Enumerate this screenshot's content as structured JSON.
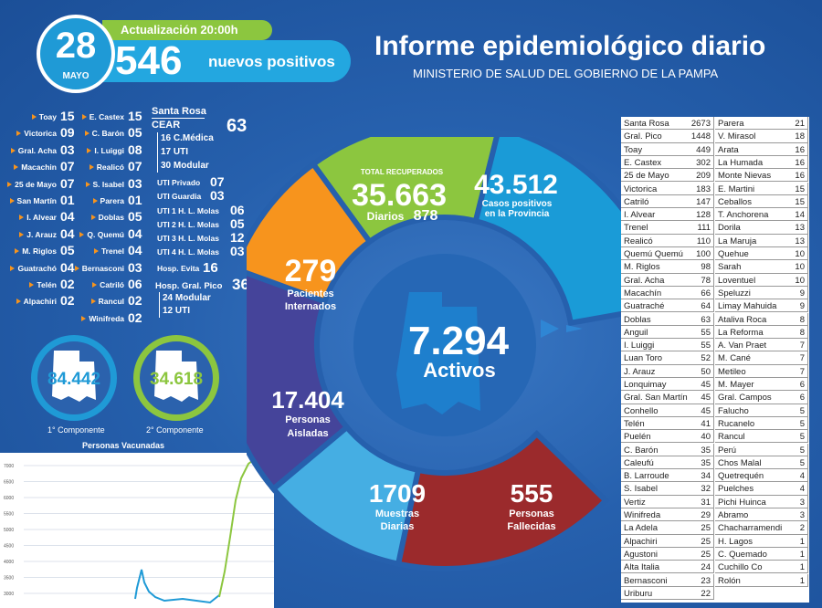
{
  "header": {
    "day": "28",
    "month": "MAYO",
    "update": "Actualización 20:00h",
    "positives": "546",
    "positives_label": "nuevos positivos",
    "title": "Informe epidemiológico diario",
    "subtitle": "MINISTERIO DE SALUD DEL GOBIERNO DE LA PAMPA"
  },
  "localities_left": [
    {
      "name": "Toay",
      "value": "15"
    },
    {
      "name": "Victorica",
      "value": "09"
    },
    {
      "name": "Gral. Acha",
      "value": "03"
    },
    {
      "name": "Macachin",
      "value": "07"
    },
    {
      "name": "25 de Mayo",
      "value": "07"
    },
    {
      "name": "San Martín",
      "value": "01"
    },
    {
      "name": "I. Alvear",
      "value": "04"
    },
    {
      "name": "J. Arauz",
      "value": "04"
    },
    {
      "name": "M. Riglos",
      "value": "05"
    },
    {
      "name": "Guatrachó",
      "value": "04"
    },
    {
      "name": "Telén",
      "value": "02"
    },
    {
      "name": "Alpachiri",
      "value": "02"
    }
  ],
  "localities_mid": [
    {
      "name": "E. Castex",
      "value": "15"
    },
    {
      "name": "C. Barón",
      "value": "05"
    },
    {
      "name": "I. Luiggi",
      "value": "08"
    },
    {
      "name": "Realicó",
      "value": "07"
    },
    {
      "name": "S. Isabel",
      "value": "03"
    },
    {
      "name": "Parera",
      "value": "01"
    },
    {
      "name": "Doblas",
      "value": "05"
    },
    {
      "name": "Q. Quemú",
      "value": "04"
    },
    {
      "name": "Trenel",
      "value": "04"
    },
    {
      "name": "Bernasconi",
      "value": "03"
    },
    {
      "name": "Catriló",
      "value": "06"
    },
    {
      "name": "Rancul",
      "value": "02"
    },
    {
      "name": "Winifreda",
      "value": "02"
    }
  ],
  "hospital": {
    "santa_rosa": "Santa Rosa",
    "cear": "CEAR",
    "cear_total": "63",
    "cmedica_num": "16",
    "cmedica": "C.Médica",
    "uti_num": "17",
    "uti": "UTI",
    "modular_num": "30",
    "modular": "Modular",
    "uti_privado": "UTI Privado",
    "uti_privado_num": "07",
    "uti_guardia": "UTI Guardia",
    "uti_guardia_num": "03",
    "hlm": [
      {
        "label": "UTI 1 H. L. Molas",
        "value": "06"
      },
      {
        "label": "UTI 2 H. L. Molas",
        "value": "05"
      },
      {
        "label": "UTI 3 H. L. Molas",
        "value": "12"
      },
      {
        "label": "UTI 4 H. L. Molas",
        "value": "03"
      }
    ],
    "evita": "Hosp. Evita",
    "evita_num": "16",
    "pico": "Hosp. Gral. Pico",
    "pico_num": "36",
    "pico_modular_num": "24",
    "pico_modular": "Modular",
    "pico_uti_num": "12",
    "pico_uti": "UTI"
  },
  "vaccines": {
    "first_value": "84.442",
    "first_label": "1° Componente",
    "second_value": "34.618",
    "second_label": "2° Componente",
    "caption": "Personas Vacunadas",
    "y_ticks": [
      "7000",
      "6500",
      "6000",
      "5500",
      "5000",
      "4500",
      "4000",
      "3500",
      "3000"
    ],
    "colors": {
      "first": "#1f9ad6",
      "second": "#8cc63f"
    }
  },
  "wheel": {
    "recovered_label": "TOTAL RECUPERADOS",
    "recovered": "35.663",
    "daily_label": "Diarios",
    "daily": "878",
    "cases": "43.512",
    "cases_label1": "Casos positivos",
    "cases_label2": "en la Provincia",
    "hospitalized": "279",
    "hospitalized_label1": "Pacientes",
    "hospitalized_label2": "Internados",
    "active": "7.294",
    "active_label": "Activos",
    "isolated": "17.404",
    "isolated_label1": "Personas",
    "isolated_label2": "Aisladas",
    "samples": "1709",
    "samples_label1": "Muestras",
    "samples_label2": "Diarias",
    "deaths": "555",
    "deaths_label1": "Personas",
    "deaths_label2": "Fallecidas",
    "colors": {
      "green": "#8cc63f",
      "blue": "#1a9bd7",
      "orange": "#f7941d",
      "purple": "#45449a",
      "light": "#45aee3",
      "red": "#9b2a2c"
    }
  },
  "table_left": [
    {
      "name": "Santa Rosa",
      "value": "2673"
    },
    {
      "name": "Gral. Pico",
      "value": "1448"
    },
    {
      "name": "Toay",
      "value": "449"
    },
    {
      "name": "E. Castex",
      "value": "302"
    },
    {
      "name": "25 de Mayo",
      "value": "209"
    },
    {
      "name": "Victorica",
      "value": "183"
    },
    {
      "name": "Catriló",
      "value": "147"
    },
    {
      "name": "I. Alvear",
      "value": "128"
    },
    {
      "name": "Trenel",
      "value": "111"
    },
    {
      "name": "Realicó",
      "value": "110"
    },
    {
      "name": "Quemú Quemú",
      "value": "100"
    },
    {
      "name": "M. Riglos",
      "value": "98"
    },
    {
      "name": "Gral. Acha",
      "value": "78"
    },
    {
      "name": "Macachín",
      "value": "66"
    },
    {
      "name": "Guatraché",
      "value": "64"
    },
    {
      "name": "Doblas",
      "value": "63"
    },
    {
      "name": "Anguil",
      "value": "55"
    },
    {
      "name": "I. Luiggi",
      "value": "55"
    },
    {
      "name": "Luan Toro",
      "value": "52"
    },
    {
      "name": "J. Arauz",
      "value": "50"
    },
    {
      "name": "Lonquimay",
      "value": "45"
    },
    {
      "name": "Gral. San Martín",
      "value": "45"
    },
    {
      "name": "Conhello",
      "value": "45"
    },
    {
      "name": "Telén",
      "value": "41"
    },
    {
      "name": "Puelén",
      "value": "40"
    },
    {
      "name": "C. Barón",
      "value": "35"
    },
    {
      "name": "Caleufú",
      "value": "35"
    },
    {
      "name": "B. Larroude",
      "value": "34"
    },
    {
      "name": "S. Isabel",
      "value": "32"
    },
    {
      "name": "Vertiz",
      "value": "31"
    },
    {
      "name": "Winifreda",
      "value": "29"
    },
    {
      "name": "La Adela",
      "value": "25"
    },
    {
      "name": "Alpachiri",
      "value": "25"
    },
    {
      "name": "Agustoni",
      "value": "25"
    },
    {
      "name": "Alta Italia",
      "value": "24"
    },
    {
      "name": "Bernasconi",
      "value": "23"
    },
    {
      "name": "Uriburu",
      "value": "22"
    }
  ],
  "table_right": [
    {
      "name": "Parera",
      "value": "21"
    },
    {
      "name": "V. Mirasol",
      "value": "18"
    },
    {
      "name": "Arata",
      "value": "16"
    },
    {
      "name": "La Humada",
      "value": "16"
    },
    {
      "name": "Monte Nievas",
      "value": "16"
    },
    {
      "name": "E. Martini",
      "value": "15"
    },
    {
      "name": "Ceballos",
      "value": "15"
    },
    {
      "name": "T. Anchorena",
      "value": "14"
    },
    {
      "name": "Dorila",
      "value": "13"
    },
    {
      "name": "La Maruja",
      "value": "13"
    },
    {
      "name": "Quehue",
      "value": "10"
    },
    {
      "name": "Sarah",
      "value": "10"
    },
    {
      "name": "Loventuel",
      "value": "10"
    },
    {
      "name": "Speluzzi",
      "value": "9"
    },
    {
      "name": "Limay Mahuida",
      "value": "9"
    },
    {
      "name": "Ataliva Roca",
      "value": "8"
    },
    {
      "name": "La Reforma",
      "value": "8"
    },
    {
      "name": "A. Van Praet",
      "value": "7"
    },
    {
      "name": "M. Cané",
      "value": "7"
    },
    {
      "name": "Metileo",
      "value": "7"
    },
    {
      "name": "M. Mayer",
      "value": "6"
    },
    {
      "name": "Gral. Campos",
      "value": "6"
    },
    {
      "name": "Falucho",
      "value": "5"
    },
    {
      "name": "Rucanelo",
      "value": "5"
    },
    {
      "name": "Rancul",
      "value": "5"
    },
    {
      "name": "Perú",
      "value": "5"
    },
    {
      "name": "Chos Malal",
      "value": "5"
    },
    {
      "name": "Quetrequén",
      "value": "4"
    },
    {
      "name": "Puelches",
      "value": "4"
    },
    {
      "name": "Pichi Huinca",
      "value": "3"
    },
    {
      "name": "Abramo",
      "value": "3"
    },
    {
      "name": "Chacharramendi",
      "value": "2"
    },
    {
      "name": "H. Lagos",
      "value": "1"
    },
    {
      "name": "C. Quemado",
      "value": "1"
    },
    {
      "name": "Cuchillo Co",
      "value": "1"
    },
    {
      "name": "Rolón",
      "value": "1"
    }
  ]
}
